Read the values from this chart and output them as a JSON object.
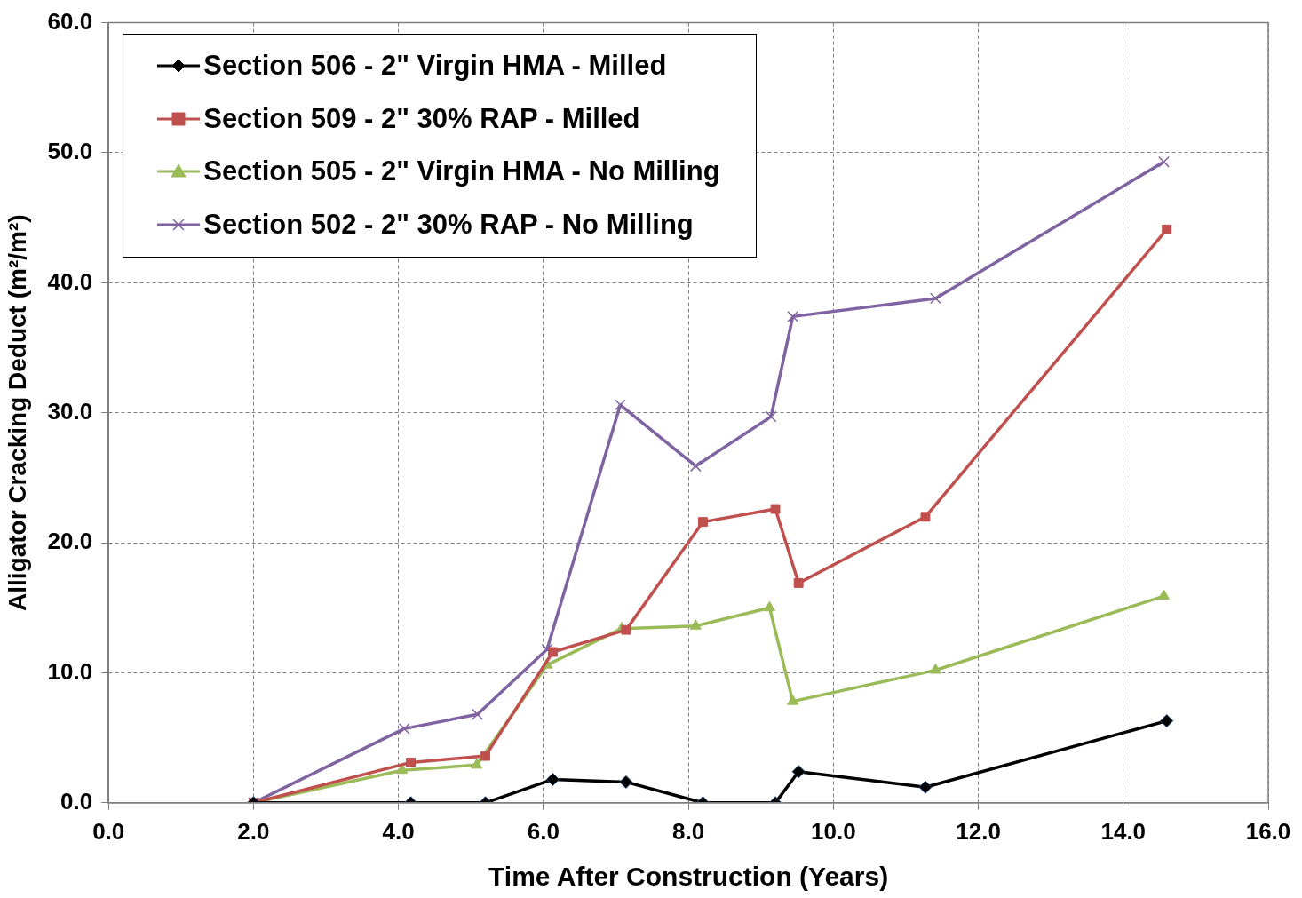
{
  "chart_data": {
    "type": "line",
    "xlabel": "Time After Construction (Years)",
    "ylabel": "Alligator Cracking Deduct (m²/m²)",
    "xlim": [
      0,
      16
    ],
    "xticks": [
      {
        "value": 0,
        "label": "0.0"
      },
      {
        "value": 2,
        "label": "2.0"
      },
      {
        "value": 4,
        "label": "4.0"
      },
      {
        "value": 6,
        "label": "6.0"
      },
      {
        "value": 8,
        "label": "8.0"
      },
      {
        "value": 10,
        "label": "10.0"
      },
      {
        "value": 12,
        "label": "12.0"
      },
      {
        "value": 14,
        "label": "14.0"
      },
      {
        "value": 16,
        "label": "16.0"
      }
    ],
    "ylim": [
      0,
      60
    ],
    "yticks": [
      {
        "value": 0,
        "label": "0.0"
      },
      {
        "value": 10,
        "label": "10.0"
      },
      {
        "value": 20,
        "label": "20.0"
      },
      {
        "value": 30,
        "label": "30.0"
      },
      {
        "value": 40,
        "label": "40.0"
      },
      {
        "value": 50,
        "label": "50.0"
      },
      {
        "value": 60,
        "label": "60.0"
      }
    ],
    "grid": true,
    "legend": "top left",
    "line_style": "solid",
    "series": [
      {
        "name": "Section 506 - 2\" Virgin HMA - Milled",
        "color": "#000000",
        "marker": "diamond",
        "x": [
          2.0,
          4.17,
          5.2,
          6.13,
          7.14,
          8.2,
          9.2,
          9.52,
          11.27,
          14.6
        ],
        "values": [
          0,
          0,
          0,
          1.8,
          1.6,
          0,
          0,
          2.4,
          1.2,
          6.3
        ]
      },
      {
        "name": "Section 509 - 2\" 30% RAP - Milled",
        "color": "#c0504d",
        "marker": "square",
        "x": [
          2.0,
          4.17,
          5.2,
          6.13,
          7.14,
          8.2,
          9.2,
          9.52,
          11.27,
          14.6
        ],
        "values": [
          0,
          3.1,
          3.6,
          11.6,
          13.3,
          21.6,
          22.6,
          16.9,
          22.0,
          44.1
        ]
      },
      {
        "name": "Section 505 - 2\" Virgin HMA - No Milling",
        "color": "#9bbb59",
        "marker": "triangle",
        "x": [
          2.0,
          4.05,
          5.08,
          6.05,
          7.08,
          8.1,
          9.12,
          9.44,
          11.41,
          14.56
        ],
        "values": [
          0,
          2.5,
          2.9,
          10.6,
          13.4,
          13.6,
          15.0,
          7.8,
          10.2,
          15.9
        ]
      },
      {
        "name": "Section 502 - 2\" 30% RAP - No Milling",
        "color": "#8064a2",
        "marker": "cross",
        "x": [
          2.0,
          4.08,
          5.09,
          6.05,
          7.06,
          8.1,
          9.14,
          9.44,
          11.41,
          14.56
        ],
        "values": [
          0,
          5.7,
          6.8,
          11.8,
          30.6,
          25.9,
          29.7,
          37.4,
          38.8,
          49.3
        ]
      }
    ]
  }
}
